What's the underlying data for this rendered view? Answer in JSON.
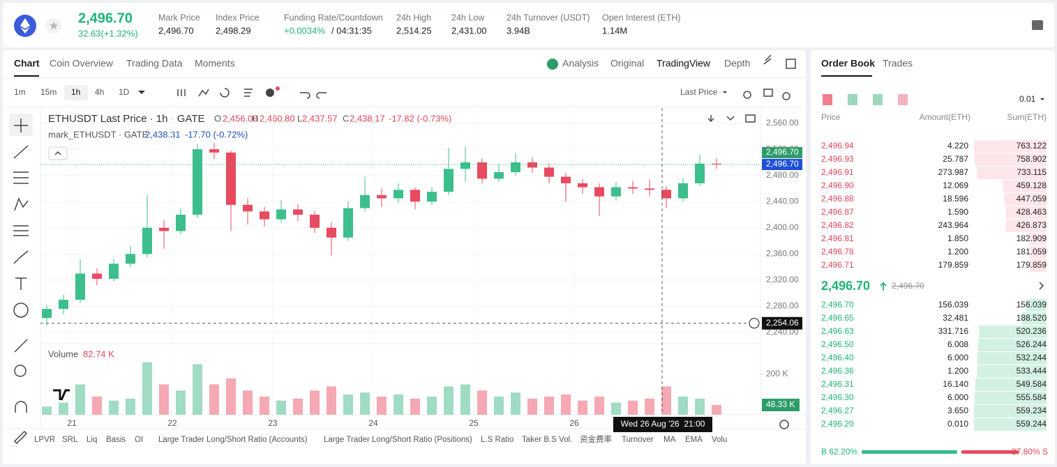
{
  "header": {
    "price": "2,496.70",
    "change": "32.63(+1.32%)",
    "stats": [
      {
        "label": "Mark Price",
        "value": "2,496.70"
      },
      {
        "label": "Index Price",
        "value": "2,498.29"
      },
      {
        "label": "Funding Rate/Countdown",
        "value": "+0.0034%",
        "extra": "/ 04:31:35"
      },
      {
        "label": "24h High",
        "value": "2,514.25"
      },
      {
        "label": "24h Low",
        "value": "2,431.00"
      },
      {
        "label": "24h Turnover (USDT)",
        "value": "3.94B"
      },
      {
        "label": "Open Interest (ETH)",
        "value": "1.14M"
      }
    ]
  },
  "tabs": [
    "Chart",
    "Coin Overview",
    "Trading Data",
    "Moments"
  ],
  "views": [
    "Analysis",
    "Original",
    "TradingView",
    "Depth"
  ],
  "intervals": [
    "1m",
    "15m",
    "1h",
    "4h",
    "1D"
  ],
  "price_source": "Last Price",
  "legend": {
    "title": "ETHUSDT Last Price · 1h · GATE",
    "ohlc": [
      "O",
      "2,456.00",
      "H",
      "2,460.80",
      "L",
      "2,437.57",
      "C",
      "2,438.17"
    ],
    "change": "-17.82 (-0.73%)",
    "mark_title": "mark_ETHUSDT · GATE",
    "mark_value": "2,438.31",
    "mark_change": "-17.70 (-0.72%)"
  },
  "chart_data": {
    "type": "candlestick",
    "open": [
      2262,
      2276,
      2290,
      2330,
      2322,
      2345,
      2360,
      2400,
      2395,
      2420,
      2520,
      2515,
      2435,
      2425,
      2413,
      2428,
      2420,
      2400,
      2385,
      2430,
      2450,
      2445,
      2458,
      2440,
      2455,
      2490,
      2500,
      2475,
      2485,
      2500,
      2492,
      2478,
      2468,
      2462,
      2448,
      2462,
      2460,
      2458,
      2445,
      2468,
      2498
    ],
    "high": [
      2282,
      2298,
      2352,
      2338,
      2352,
      2372,
      2450,
      2412,
      2430,
      2528,
      2530,
      2518,
      2445,
      2432,
      2442,
      2436,
      2426,
      2408,
      2440,
      2478,
      2460,
      2468,
      2462,
      2462,
      2522,
      2524,
      2506,
      2498,
      2514,
      2508,
      2498,
      2484,
      2474,
      2468,
      2470,
      2472,
      2474,
      2464,
      2476,
      2512,
      2506
    ],
    "low": [
      2250,
      2268,
      2285,
      2312,
      2318,
      2340,
      2355,
      2368,
      2390,
      2415,
      2505,
      2395,
      2405,
      2402,
      2408,
      2410,
      2392,
      2358,
      2380,
      2425,
      2432,
      2438,
      2428,
      2435,
      2450,
      2470,
      2468,
      2470,
      2480,
      2484,
      2468,
      2440,
      2452,
      2418,
      2442,
      2452,
      2448,
      2430,
      2440,
      2464,
      2490
    ],
    "close": [
      2276,
      2290,
      2330,
      2322,
      2345,
      2360,
      2400,
      2395,
      2420,
      2520,
      2515,
      2435,
      2425,
      2413,
      2428,
      2420,
      2400,
      2385,
      2430,
      2450,
      2445,
      2458,
      2440,
      2455,
      2490,
      2500,
      2475,
      2485,
      2500,
      2492,
      2478,
      2468,
      2462,
      2448,
      2462,
      2460,
      2458,
      2445,
      2468,
      2498,
      2496.7
    ],
    "volume": [
      40,
      60,
      150,
      90,
      70,
      80,
      260,
      150,
      120,
      250,
      150,
      180,
      120,
      90,
      70,
      80,
      120,
      140,
      100,
      110,
      90,
      100,
      80,
      90,
      140,
      150,
      120,
      90,
      110,
      80,
      90,
      100,
      70,
      90,
      60,
      70,
      80,
      140,
      90,
      80,
      48.33
    ],
    "ylim": [
      2224,
      2583
    ],
    "yticks": [
      {
        "value": 2240,
        "label": "2,240.00"
      },
      {
        "value": 2280,
        "label": "2,280.00"
      },
      {
        "value": 2320,
        "label": "2,320.00"
      },
      {
        "value": 2360,
        "label": "2,360.00"
      },
      {
        "value": 2400,
        "label": "2,400.00"
      },
      {
        "value": 2440,
        "label": "2,440.00"
      },
      {
        "value": 2480,
        "label": "2,480.00"
      },
      {
        "value": 2520,
        "label": "2,520.00"
      },
      {
        "value": 2560,
        "label": "2,560.00"
      }
    ],
    "volume_ylim": [
      0,
      345
    ],
    "volume_ticks": [
      {
        "value": 200,
        "label": "200 K"
      }
    ],
    "xticks": [
      "21",
      "22",
      "23",
      "24",
      "25",
      "26"
    ],
    "last_price": {
      "value": 2496.7,
      "label": "2,496.70"
    },
    "mark_price": {
      "value": 2496.7,
      "label": "2,496.70"
    },
    "crosshair": {
      "value": 2254.06,
      "label": "2,254.06",
      "time": "Wed 26 Aug '26  21:00"
    },
    "volume_title": "Volume",
    "volume_value": "82.74 K",
    "last_volume": {
      "value": 48.33,
      "label": "48.33 K"
    }
  },
  "indicators": [
    "LPVR",
    "SRL",
    "Liq",
    "Basis",
    "OI",
    "Large Trader Long/Short Ratio (Accounts)",
    "Large Trader Long/Short Ratio (Positions)",
    "L.S Ratio",
    "Taker B.S Vol.",
    "资金费率",
    "Turnover",
    "MA",
    "EMA",
    "Volu"
  ],
  "order_book": {
    "tabs": [
      "Order Book",
      "Trades"
    ],
    "tick": "0.01",
    "columns": [
      "Price",
      "Amount(ETH)",
      "Sum(ETH)"
    ],
    "asks": [
      {
        "price": "2,496.94",
        "amount": "4.220",
        "sum": {
          "value": 763.122,
          "label": "763.122"
        }
      },
      {
        "price": "2,496.93",
        "amount": "25.787",
        "sum": {
          "value": 758.902,
          "label": "758.902"
        }
      },
      {
        "price": "2,496.91",
        "amount": "273.987",
        "sum": {
          "value": 733.115,
          "label": "733.115"
        }
      },
      {
        "price": "2,496.90",
        "amount": "12.069",
        "sum": {
          "value": 459.128,
          "label": "459.128"
        }
      },
      {
        "price": "2,496.88",
        "amount": "18.596",
        "sum": {
          "value": 447.059,
          "label": "447.059"
        }
      },
      {
        "price": "2,496.87",
        "amount": "1.590",
        "sum": {
          "value": 428.463,
          "label": "428.463"
        }
      },
      {
        "price": "2,496.82",
        "amount": "243.964",
        "sum": {
          "value": 426.873,
          "label": "426.873"
        }
      },
      {
        "price": "2,496.81",
        "amount": "1.850",
        "sum": {
          "value": 182.909,
          "label": "182.909"
        }
      },
      {
        "price": "2,496.78",
        "amount": "1.200",
        "sum": {
          "value": 181.059,
          "label": "181.059"
        }
      },
      {
        "price": "2,496.71",
        "amount": "179.859",
        "sum": {
          "value": 179.859,
          "label": "179.859"
        }
      }
    ],
    "mid": {
      "price": "2,496.70",
      "mark": "2,496.70"
    },
    "bids": [
      {
        "price": "2,496.70",
        "amount": "156.039",
        "sum": {
          "value": 156.039,
          "label": "156.039"
        }
      },
      {
        "price": "2,496.65",
        "amount": "32.481",
        "sum": {
          "value": 188.52,
          "label": "188.520"
        }
      },
      {
        "price": "2,496.63",
        "amount": "331.716",
        "sum": {
          "value": 520.236,
          "label": "520.236"
        }
      },
      {
        "price": "2,496.50",
        "amount": "6.008",
        "sum": {
          "value": 526.244,
          "label": "526.244"
        }
      },
      {
        "price": "2,496.40",
        "amount": "6.000",
        "sum": {
          "value": 532.244,
          "label": "532.244"
        }
      },
      {
        "price": "2,496.36",
        "amount": "1.200",
        "sum": {
          "value": 533.444,
          "label": "533.444"
        }
      },
      {
        "price": "2,496.31",
        "amount": "16.140",
        "sum": {
          "value": 549.584,
          "label": "549.584"
        }
      },
      {
        "price": "2,496.30",
        "amount": "6.000",
        "sum": {
          "value": 555.584,
          "label": "555.584"
        }
      },
      {
        "price": "2,496.27",
        "amount": "3.650",
        "sum": {
          "value": 559.234,
          "label": "559.234"
        }
      },
      {
        "price": "2,496.20",
        "amount": "0.010",
        "sum": {
          "value": 559.244,
          "label": "559.244"
        }
      }
    ],
    "buy": 62.2,
    "buy_label": "B 62.20%",
    "sell": 37.8,
    "sell_label": "37.80% S"
  }
}
